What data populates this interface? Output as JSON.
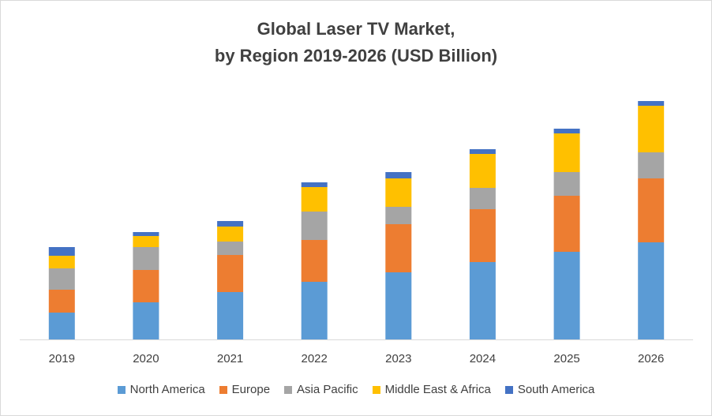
{
  "chart_data": {
    "type": "bar",
    "stacked": true,
    "title": "Global Laser TV Market,",
    "subtitle": "by Region 2019-2026 (USD Billion)",
    "categories": [
      "2019",
      "2020",
      "2021",
      "2022",
      "2023",
      "2024",
      "2025",
      "2026"
    ],
    "series": [
      {
        "name": "North America",
        "color": "#5b9bd5",
        "values": [
          34,
          47,
          60,
          73,
          85,
          98,
          111,
          123
        ]
      },
      {
        "name": "Europe",
        "color": "#ed7d31",
        "values": [
          29,
          41,
          47,
          53,
          61,
          67,
          71,
          81
        ]
      },
      {
        "name": "Asia Pacific",
        "color": "#a5a5a5",
        "values": [
          27,
          29,
          17,
          36,
          22,
          27,
          30,
          33
        ]
      },
      {
        "name": "Middle East & Africa",
        "color": "#ffc000",
        "values": [
          16,
          14,
          19,
          31,
          36,
          43,
          49,
          59
        ]
      },
      {
        "name": "South America",
        "color": "#4472c4",
        "values": [
          11,
          5,
          7,
          6,
          8,
          6,
          6,
          6
        ]
      }
    ],
    "ylim": [
      0,
      340
    ],
    "grid": false,
    "legend_position": "bottom"
  }
}
